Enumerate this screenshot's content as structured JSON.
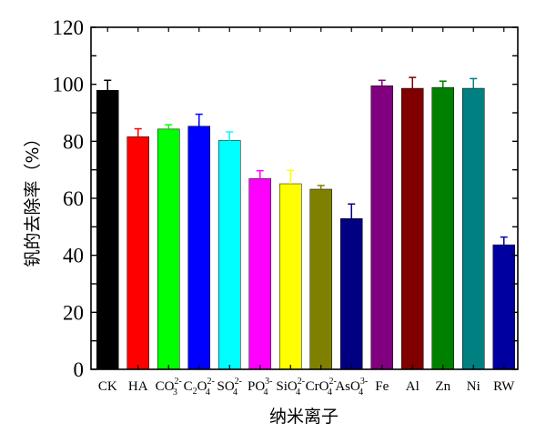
{
  "chart_data": {
    "type": "bar",
    "title": "",
    "xlabel": "纳米离子",
    "ylabel": "钒的去除率（%）",
    "ylim": [
      0,
      120
    ],
    "yticks": [
      0,
      20,
      40,
      60,
      80,
      100,
      120
    ],
    "grid": false,
    "categories": [
      {
        "base": "CK"
      },
      {
        "base": "HA"
      },
      {
        "base": "CO",
        "sub": "3",
        "sup": "2-"
      },
      {
        "base": "C",
        "sub0": "2",
        "base2": "O",
        "sub": "4",
        "sup": "2-"
      },
      {
        "base": "SO",
        "sub": "4",
        "sup": "2-"
      },
      {
        "base": "PO",
        "sub": "4",
        "sup": "3-"
      },
      {
        "base": "SiO",
        "sub": "4",
        "sup": "2-"
      },
      {
        "base": "CrO",
        "sub": "4",
        "sup": "2-"
      },
      {
        "base": "AsO",
        "sub": "4",
        "sup": "3-"
      },
      {
        "base": "Fe"
      },
      {
        "base": "Al"
      },
      {
        "base": "Zn"
      },
      {
        "base": "Ni"
      },
      {
        "base": "RW"
      }
    ],
    "values": [
      97.9,
      81.6,
      84.3,
      85.3,
      80.3,
      66.9,
      65.1,
      63.2,
      52.9,
      99.5,
      98.6,
      98.9,
      98.6,
      43.7
    ],
    "errors": [
      3.5,
      2.8,
      1.5,
      4.2,
      3.0,
      2.8,
      4.7,
      1.3,
      5.1,
      1.9,
      3.8,
      2.2,
      3.4,
      2.7
    ],
    "colors": [
      "#000000",
      "#ff0000",
      "#00ff00",
      "#0000ff",
      "#00ffff",
      "#ff00ff",
      "#ffff00",
      "#808000",
      "#000080",
      "#800080",
      "#800000",
      "#008000",
      "#008080",
      "#0000a0"
    ]
  }
}
